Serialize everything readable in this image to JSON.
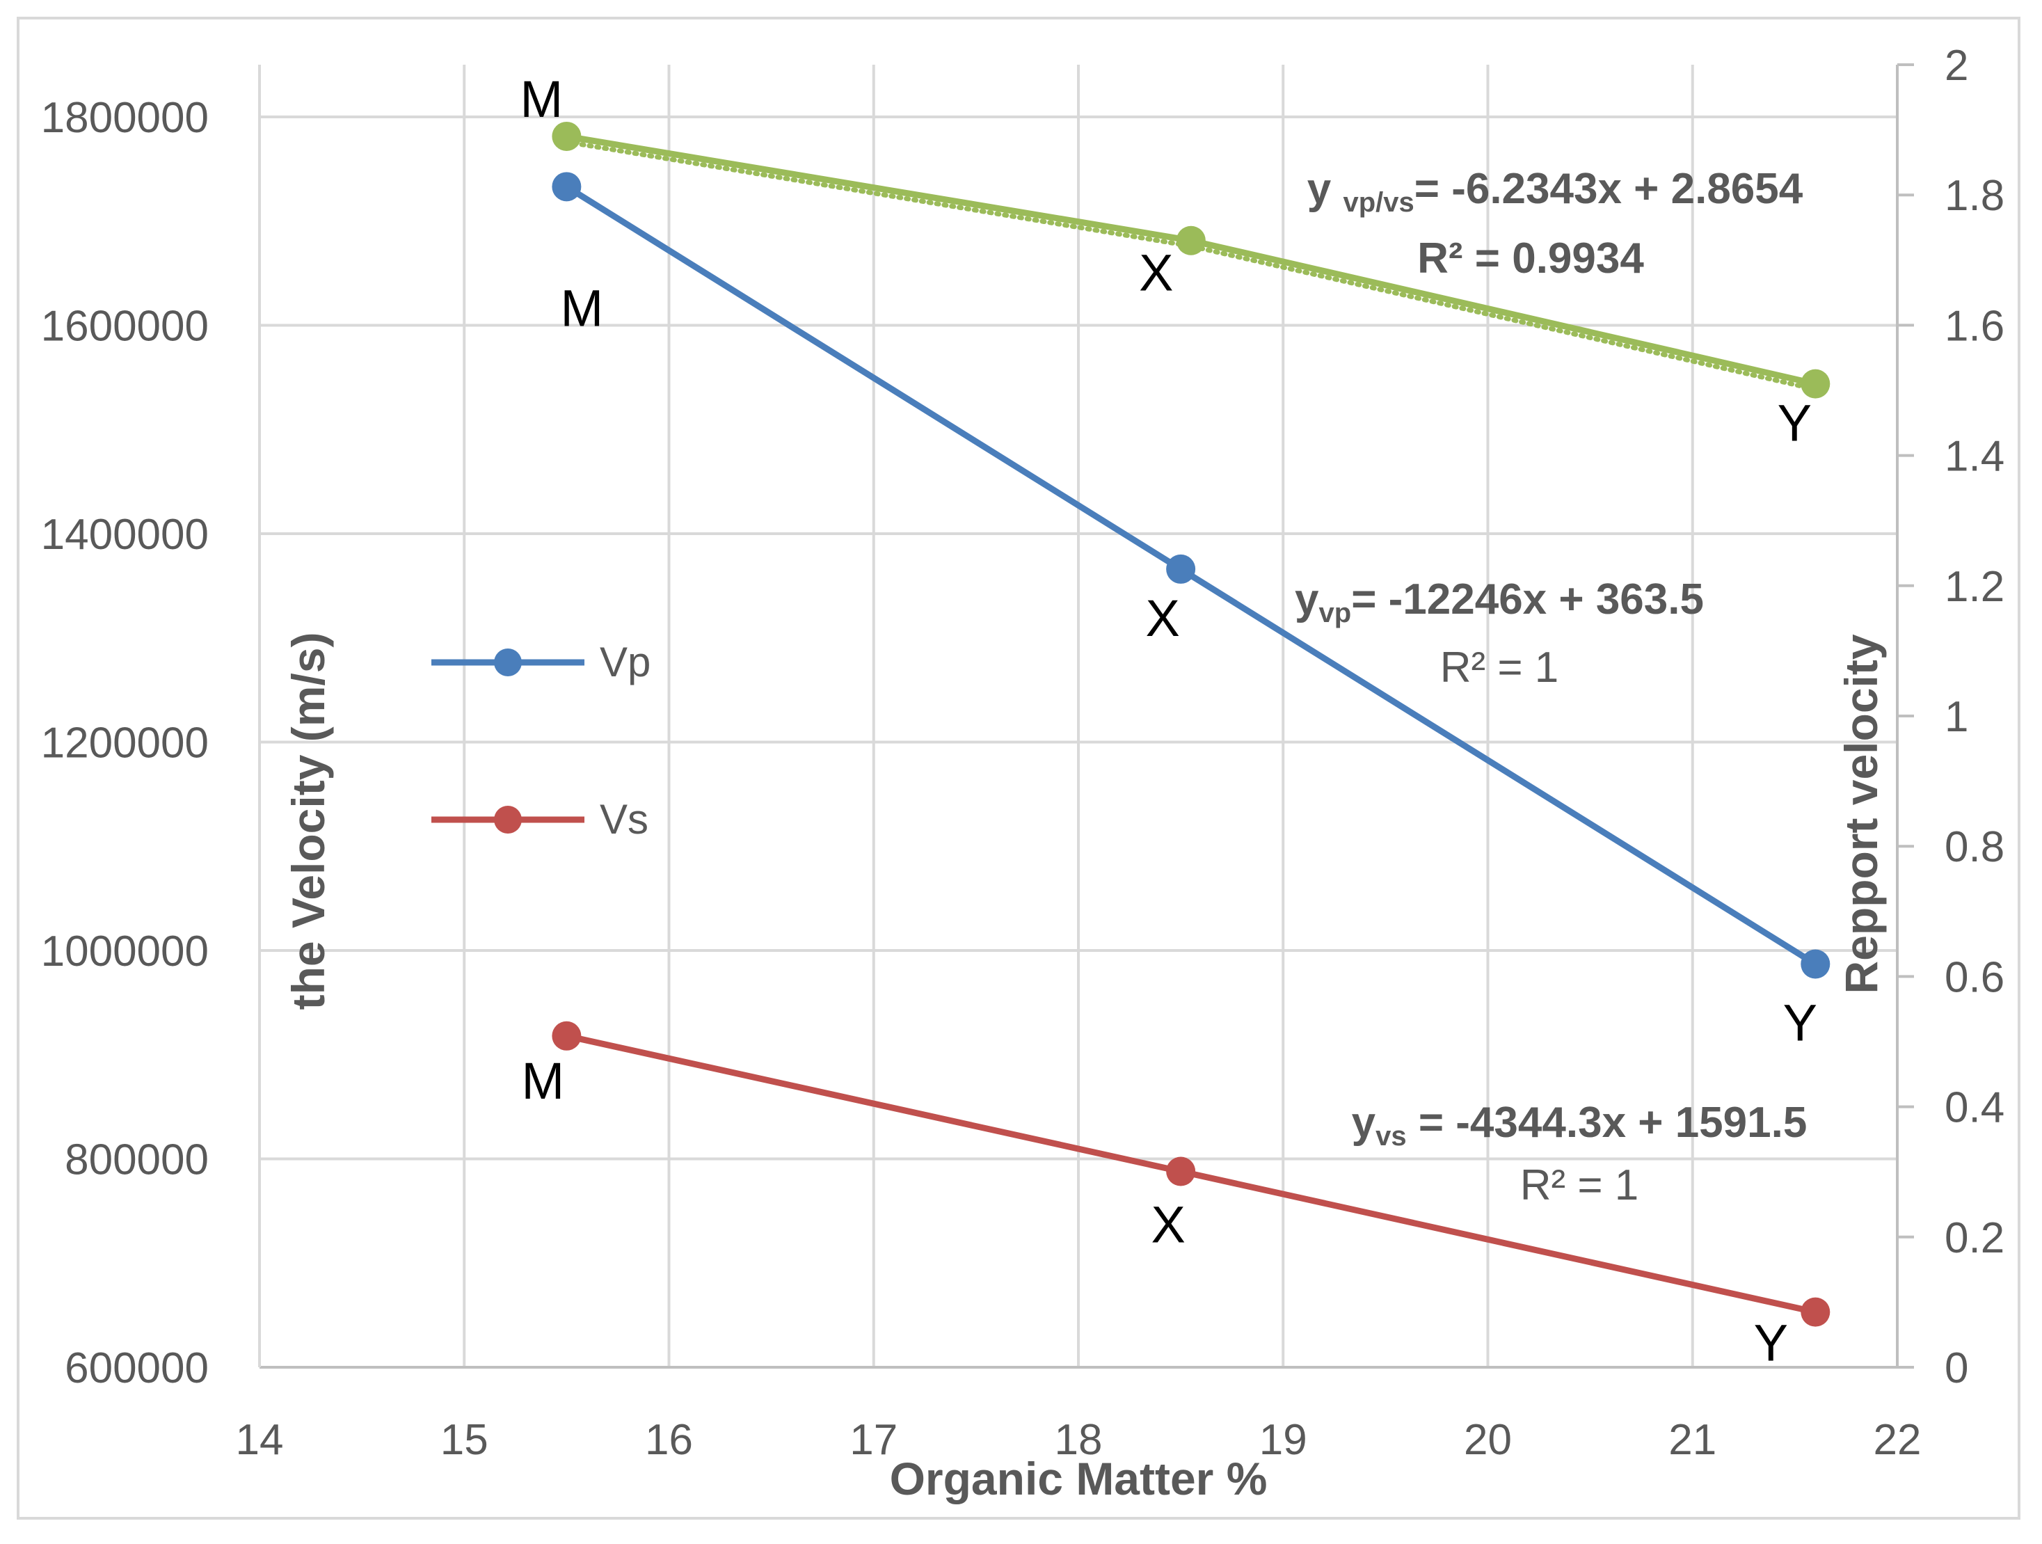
{
  "chart_data": {
    "type": "line",
    "xlabel": "Organic Matter %",
    "ylabel": "the Velocity  (m/s)",
    "y2label": "Repport  velocity",
    "xlim": [
      14,
      22
    ],
    "ylim": [
      600000,
      1800000
    ],
    "y2lim": [
      0,
      2
    ],
    "x_ticks": [
      "14",
      "15",
      "16",
      "17",
      "18",
      "19",
      "20",
      "21",
      "22"
    ],
    "y_ticks": [
      "600000",
      "800000",
      "1000000",
      "1200000",
      "1400000",
      "1600000",
      "1800000"
    ],
    "y2_ticks": [
      "0",
      "0.2",
      "0.4",
      "0.6",
      "0.8",
      "1",
      "1.2",
      "1.4",
      "1.6",
      "1.8",
      "2"
    ],
    "grid": true,
    "legend": [
      "Vp",
      "Vs"
    ],
    "series": [
      {
        "name": "Vp",
        "axis": "left",
        "color": "#4a7ebb",
        "x": [
          15.5,
          18.5,
          21.6
        ],
        "values": [
          1733000,
          1366000,
          987000
        ],
        "point_labels": [
          "M",
          "X",
          "Y"
        ],
        "equation": "= -12246x + 363.5",
        "equation_y": "y",
        "equation_sub": "vp",
        "r2": "R² = 1"
      },
      {
        "name": "Vs",
        "axis": "left",
        "color": "#c0504d",
        "x": [
          15.5,
          18.5,
          21.6
        ],
        "values": [
          918000,
          788000,
          653000
        ],
        "point_labels": [
          "M",
          "X",
          "Y"
        ],
        "equation": " = -4344.3x + 1591.5",
        "equation_y": "y",
        "equation_sub": "vs",
        "r2": "R² = 1"
      },
      {
        "name": "Vp/Vs",
        "axis": "right",
        "color": "#9bbb59",
        "x": [
          15.5,
          18.55,
          21.6
        ],
        "values": [
          1.89,
          1.73,
          1.51
        ],
        "point_labels": [
          "M",
          "X",
          "Y"
        ],
        "equation": "= -6.2343x + 2.8654",
        "equation_y": "y ",
        "equation_sub": "vp/vs",
        "r2": "R² = 0.9934"
      }
    ]
  }
}
